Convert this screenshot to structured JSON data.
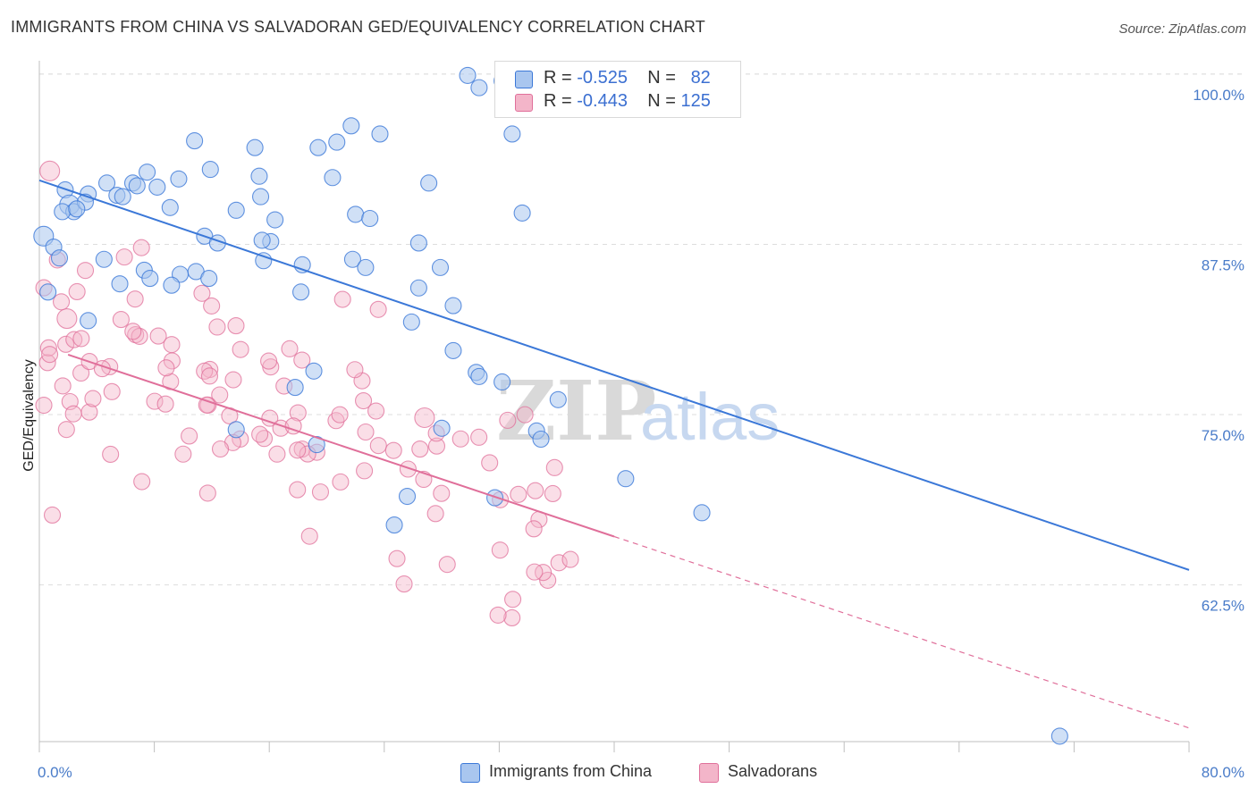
{
  "title": "IMMIGRANTS FROM CHINA VS SALVADORAN GED/EQUIVALENCY CORRELATION CHART",
  "source": "Source: ZipAtlas.com",
  "colors": {
    "blue": "#3b78d8",
    "blue_fill": "#a9c6ef",
    "pink": "#e06f9a",
    "pink_fill": "#f3b5c9",
    "grid": "#dddddd",
    "axis_text": "#4a7cc9"
  },
  "legend": {
    "rows": [
      {
        "r_label": "R =",
        "r_value": "-0.525",
        "n_label": "N =",
        "n_value": "82"
      },
      {
        "r_label": "R =",
        "r_value": "-0.443",
        "n_label": "N =",
        "n_value": "125"
      }
    ]
  },
  "bottom_legend": [
    {
      "label": "Immigrants from China"
    },
    {
      "label": "Salvadorans"
    }
  ],
  "watermark": {
    "zip": "ZIP",
    "atlas": "atlas"
  },
  "chart_data": {
    "type": "scatter",
    "title": "IMMIGRANTS FROM CHINA VS SALVADORAN GED/EQUIVALENCY CORRELATION CHART",
    "xlabel": "",
    "ylabel": "GED/Equivalency",
    "xlim": [
      0,
      80
    ],
    "ylim": [
      51,
      101.5
    ],
    "x_tick_labels": [
      {
        "value": 0,
        "label": "0.0%"
      },
      {
        "value": 80,
        "label": "80.0%"
      }
    ],
    "y_tick_labels": [
      {
        "value": 62.5,
        "label": "62.5%"
      },
      {
        "value": 75.0,
        "label": "75.0%"
      },
      {
        "value": 87.5,
        "label": "87.5%"
      },
      {
        "value": 100.0,
        "label": "100.0%"
      }
    ],
    "series": [
      {
        "name": "Immigrants from China",
        "color": "#3b78d8",
        "trend": {
          "x0": 0,
          "y0": 92.2,
          "x1": 80,
          "y1": 63.6,
          "solid_to": 80
        },
        "points": [
          [
            0.3,
            88.1
          ],
          [
            1.0,
            87.3
          ],
          [
            1.4,
            86.5
          ],
          [
            0.6,
            84.0
          ],
          [
            1.8,
            91.5
          ],
          [
            2.1,
            90.4
          ],
          [
            3.4,
            91.2
          ],
          [
            2.4,
            89.9
          ],
          [
            1.6,
            89.9
          ],
          [
            3.2,
            90.6
          ],
          [
            2.6,
            90.1
          ],
          [
            4.7,
            92.0
          ],
          [
            5.4,
            91.1
          ],
          [
            6.5,
            92.0
          ],
          [
            7.5,
            92.8
          ],
          [
            8.2,
            91.7
          ],
          [
            6.8,
            91.8
          ],
          [
            5.8,
            91.0
          ],
          [
            9.7,
            92.3
          ],
          [
            10.8,
            95.1
          ],
          [
            11.9,
            93.0
          ],
          [
            15.0,
            94.6
          ],
          [
            15.3,
            92.5
          ],
          [
            15.4,
            91.0
          ],
          [
            13.7,
            90.0
          ],
          [
            9.1,
            90.2
          ],
          [
            16.4,
            89.3
          ],
          [
            11.5,
            88.1
          ],
          [
            12.4,
            87.6
          ],
          [
            16.1,
            87.7
          ],
          [
            15.5,
            87.8
          ],
          [
            15.6,
            86.3
          ],
          [
            18.3,
            86.0
          ],
          [
            19.4,
            94.6
          ],
          [
            20.4,
            92.4
          ],
          [
            20.7,
            95.0
          ],
          [
            21.7,
            96.2
          ],
          [
            23.7,
            95.6
          ],
          [
            22.0,
            89.7
          ],
          [
            23.0,
            89.4
          ],
          [
            21.8,
            86.4
          ],
          [
            22.7,
            85.8
          ],
          [
            27.1,
            92.0
          ],
          [
            26.4,
            87.6
          ],
          [
            27.9,
            85.8
          ],
          [
            26.4,
            84.3
          ],
          [
            25.9,
            81.8
          ],
          [
            29.8,
            99.9
          ],
          [
            30.6,
            99.0
          ],
          [
            32.2,
            99.5
          ],
          [
            33.7,
            99.4
          ],
          [
            32.9,
            95.6
          ],
          [
            33.6,
            89.8
          ],
          [
            4.5,
            86.4
          ],
          [
            5.6,
            84.6
          ],
          [
            7.3,
            85.6
          ],
          [
            9.8,
            85.3
          ],
          [
            10.9,
            85.5
          ],
          [
            11.8,
            85.0
          ],
          [
            9.2,
            84.5
          ],
          [
            7.7,
            85.0
          ],
          [
            18.2,
            84.0
          ],
          [
            19.1,
            78.2
          ],
          [
            17.8,
            77.0
          ],
          [
            28.8,
            83.0
          ],
          [
            28.8,
            79.7
          ],
          [
            30.4,
            78.1
          ],
          [
            30.6,
            77.8
          ],
          [
            32.2,
            77.4
          ],
          [
            34.6,
            73.8
          ],
          [
            34.9,
            73.2
          ],
          [
            36.1,
            76.1
          ],
          [
            28.0,
            74.0
          ],
          [
            19.3,
            72.8
          ],
          [
            13.7,
            73.9
          ],
          [
            25.6,
            69.0
          ],
          [
            24.7,
            66.9
          ],
          [
            31.7,
            68.9
          ],
          [
            40.8,
            70.3
          ],
          [
            46.1,
            67.8
          ],
          [
            3.4,
            81.9
          ],
          [
            71.0,
            51.4
          ]
        ]
      },
      {
        "name": "Salvadorans",
        "color": "#e06f9a",
        "trend": {
          "x0": 2,
          "y0": 79.4,
          "x1": 80,
          "y1": 52.0,
          "solid_to": 40
        }
      }
    ]
  }
}
